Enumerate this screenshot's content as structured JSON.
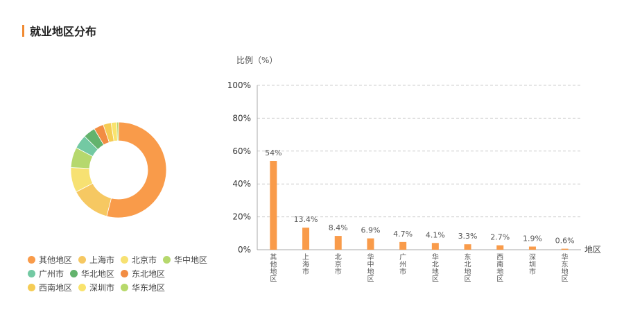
{
  "section": {
    "title": "就业地区分布"
  },
  "chart_data": [
    {
      "type": "pie",
      "variant": "donut",
      "categories": [
        "其他地区",
        "上海市",
        "北京市",
        "华中地区",
        "广州市",
        "华北地区",
        "东北地区",
        "西南地区",
        "深圳市",
        "华东地区"
      ],
      "values": [
        54,
        13.4,
        8.4,
        6.9,
        4.7,
        4.1,
        3.3,
        2.7,
        1.9,
        0.6
      ],
      "colors": [
        "#f99b4a",
        "#f6c862",
        "#f7e172",
        "#b6d86d",
        "#73c9a3",
        "#63b36d",
        "#f28d43",
        "#f5cc55",
        "#f9e36d",
        "#b7d96b"
      ],
      "legend": "bottom"
    },
    {
      "type": "bar",
      "categories": [
        "其他地区",
        "上海市",
        "北京市",
        "华中地区",
        "广州市",
        "华北地区",
        "东北地区",
        "西南地区",
        "深圳市",
        "华东地区"
      ],
      "values": [
        54,
        13.4,
        8.4,
        6.9,
        4.7,
        4.1,
        3.3,
        2.7,
        1.9,
        0.6
      ],
      "data_labels": [
        "54%",
        "13.4%",
        "8.4%",
        "6.9%",
        "4.7%",
        "4.1%",
        "3.3%",
        "2.7%",
        "1.9%",
        "0.6%"
      ],
      "ylabel": "比例（%）",
      "xlabel": "地区",
      "ylim": [
        0,
        100
      ],
      "yticks": [
        "0%",
        "20%",
        "40%",
        "60%",
        "80%",
        "100%"
      ],
      "grid": true,
      "bar_color": "#f99b4a"
    }
  ]
}
